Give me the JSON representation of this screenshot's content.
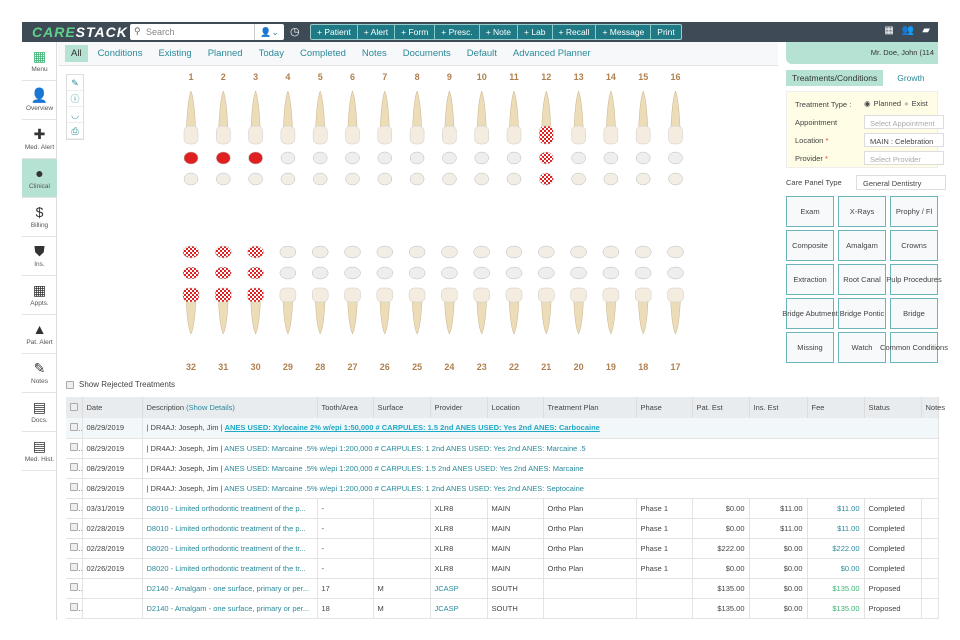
{
  "app": {
    "logo": "CARESTACK"
  },
  "topbar": {
    "search_placeholder": "Search",
    "quick_actions": [
      "+ Patient",
      "+ Alert",
      "+ Form",
      "+ Presc.",
      "+ Note",
      "+ Lab",
      "+ Recall",
      "+ Message",
      "Print"
    ]
  },
  "sidebar": {
    "items": [
      {
        "label": "Menu",
        "icon": "grid-icon"
      },
      {
        "label": "Overview",
        "icon": "person-icon"
      },
      {
        "label": "Med. Alert",
        "icon": "plus-icon"
      },
      {
        "label": "Clinical",
        "icon": "tx-icon",
        "active": true
      },
      {
        "label": "Billing",
        "icon": "dollar-doc-icon"
      },
      {
        "label": "Ins.",
        "icon": "shield-icon"
      },
      {
        "label": "Appts.",
        "icon": "calendar-icon"
      },
      {
        "label": "Pat. Alert",
        "icon": "alert-triangle-icon"
      },
      {
        "label": "Notes",
        "icon": "note-icon"
      },
      {
        "label": "Docs.",
        "icon": "docs-icon"
      },
      {
        "label": "Med. Hist.",
        "icon": "document-icon"
      }
    ]
  },
  "tabs": [
    "All",
    "Conditions",
    "Existing",
    "Planned",
    "Today",
    "Completed",
    "Notes",
    "Documents",
    "Default",
    "Advanced Planner"
  ],
  "active_tab": "All",
  "chart": {
    "upper": [
      "1",
      "2",
      "3",
      "4",
      "5",
      "6",
      "7",
      "8",
      "9",
      "10",
      "11",
      "12",
      "13",
      "14",
      "15",
      "16"
    ],
    "lower": [
      "32",
      "31",
      "30",
      "29",
      "28",
      "27",
      "26",
      "25",
      "24",
      "23",
      "22",
      "21",
      "20",
      "19",
      "18",
      "17"
    ]
  },
  "patient": {
    "name": "Mr. Doe, John (114"
  },
  "right_panel": {
    "tabs": [
      "Treatments/Conditions",
      "Growth"
    ],
    "treatment_type_label": "Treatment Type",
    "planned": "Planned",
    "existing": "Exist",
    "appointment_label": "Appointment",
    "appointment_placeholder": "Select Appointment",
    "location_label": "Location",
    "location_value": "MAIN : Celebration",
    "provider_label": "Provider",
    "provider_placeholder": "Select Provider",
    "care_panel_label": "Care Panel Type",
    "care_panel_value": "General Dentistry",
    "buttons": [
      "Exam",
      "X-Rays",
      "Prophy / Fl",
      "Composite",
      "Amalgam",
      "Crowns",
      "Extraction",
      "Root Canal",
      "Pulp Procedures",
      "Bridge Abutment",
      "Bridge Pontic",
      "Bridge",
      "Missing",
      "Watch",
      "Common Conditions"
    ]
  },
  "table": {
    "show_rejected": "Show Rejected Treatments",
    "headers": [
      "Date",
      "Description",
      "(Show Details)",
      "Tooth/Area",
      "Surface",
      "Provider",
      "Location",
      "Treatment Plan",
      "Phase",
      "Pat. Est",
      "Ins. Est",
      "Fee",
      "Status",
      "Notes"
    ],
    "note_rows": [
      {
        "date": "08/29/2019",
        "prefix": "| DR4AJ: Joseph, Jim | ",
        "text": "ANES USED: Xylocaine 2% w/epi 1:50,000  # CARPULES: 1.5 2nd ANES USED: Yes 2nd ANES: Carbocaine"
      },
      {
        "date": "08/29/2019",
        "prefix": "| DR4AJ: Joseph, Jim | ",
        "text": "ANES USED: Marcaine .5% w/epi 1:200,000  # CARPULES: 1 2nd ANES USED: Yes 2nd ANES: Marcaine .5"
      },
      {
        "date": "08/29/2019",
        "prefix": "| DR4AJ: Joseph, Jim | ",
        "text": "ANES USED: Marcaine .5% w/epi 1:200,000  # CARPULES: 1.5 2nd ANES USED: Yes 2nd ANES: Marcaine"
      },
      {
        "date": "08/29/2019",
        "prefix": "| DR4AJ: Joseph, Jim | ",
        "text": "ANES USED: Marcaine .5% w/epi 1:200,000  # CARPULES: 1 2nd ANES USED: Yes 2nd ANES: Septocaine"
      }
    ],
    "rows": [
      {
        "date": "03/31/2019",
        "desc": "D8010 - Limited orthodontic treatment of the p...",
        "tooth": "-",
        "surface": "",
        "provider": "XLR8",
        "location": "MAIN",
        "plan": "Ortho Plan",
        "phase": "Phase 1",
        "pat": "$0.00",
        "ins": "$11.00",
        "fee": "$11.00",
        "status": "Completed"
      },
      {
        "date": "02/28/2019",
        "desc": "D8010 - Limited orthodontic treatment of the p...",
        "tooth": "-",
        "surface": "",
        "provider": "XLR8",
        "location": "MAIN",
        "plan": "Ortho Plan",
        "phase": "Phase 1",
        "pat": "$0.00",
        "ins": "$11.00",
        "fee": "$11.00",
        "status": "Completed"
      },
      {
        "date": "02/28/2019",
        "desc": "D8020 - Limited orthodontic treatment of the tr...",
        "tooth": "-",
        "surface": "",
        "provider": "XLR8",
        "location": "MAIN",
        "plan": "Ortho Plan",
        "phase": "Phase 1",
        "pat": "$222.00",
        "ins": "$0.00",
        "fee": "$222.00",
        "status": "Completed"
      },
      {
        "date": "02/26/2019",
        "desc": "D8020 - Limited orthodontic treatment of the tr...",
        "tooth": "-",
        "surface": "",
        "provider": "XLR8",
        "location": "MAIN",
        "plan": "Ortho Plan",
        "phase": "Phase 1",
        "pat": "$0.00",
        "ins": "$0.00",
        "fee": "$0.00",
        "status": "Completed"
      },
      {
        "date": "",
        "desc": "D2140 - Amalgam - one surface, primary or per...",
        "tooth": "17",
        "surface": "M",
        "provider": "JCASP",
        "location": "SOUTH",
        "plan": "",
        "phase": "",
        "pat": "$135.00",
        "ins": "$0.00",
        "fee": "$135.00",
        "status": "Proposed"
      },
      {
        "date": "",
        "desc": "D2140 - Amalgam - one surface, primary or per...",
        "tooth": "18",
        "surface": "M",
        "provider": "JCASP",
        "location": "SOUTH",
        "plan": "",
        "phase": "",
        "pat": "$135.00",
        "ins": "$0.00",
        "fee": "$135.00",
        "status": "Proposed"
      }
    ]
  },
  "colors": {
    "topbar": "#3e4a55",
    "accent": "#2a8a9a",
    "active": "#b5e2d2",
    "condition": "#e02020",
    "proposed_fee": "#3cb371"
  }
}
